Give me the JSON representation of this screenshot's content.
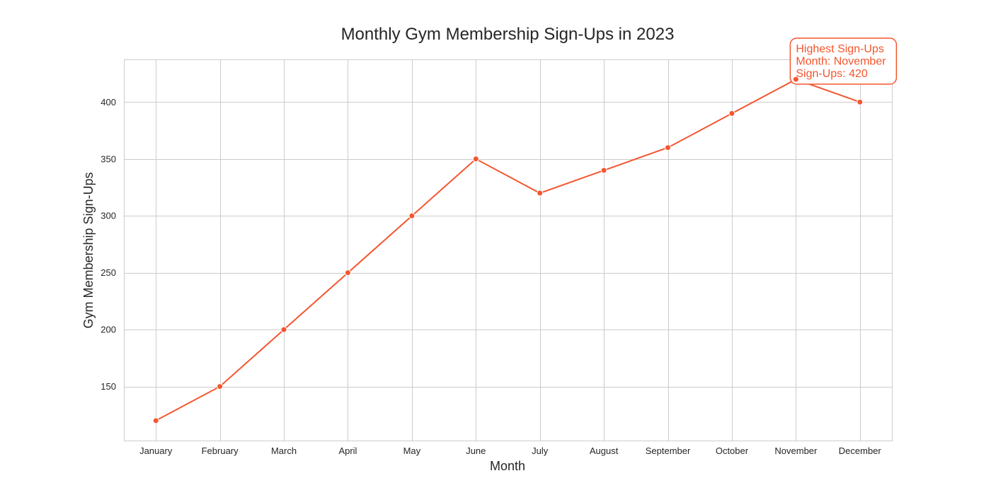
{
  "chart_data": {
    "type": "line",
    "title": "Monthly Gym Membership Sign-Ups in 2023",
    "xlabel": "Month",
    "ylabel": "Gym Membership Sign-Ups",
    "categories": [
      "January",
      "February",
      "March",
      "April",
      "May",
      "June",
      "July",
      "August",
      "September",
      "October",
      "November",
      "December"
    ],
    "series": [
      {
        "name": "Sign-Ups",
        "values": [
          120,
          150,
          200,
          250,
          300,
          350,
          320,
          340,
          360,
          390,
          420,
          400
        ]
      }
    ],
    "ylim": [
      102.5,
      437.5
    ],
    "yticks": [
      150,
      200,
      250,
      300,
      350,
      400
    ],
    "grid": true,
    "color": "#f4562f",
    "annotation": {
      "lines": [
        "Highest Sign-Ups",
        "Month: November",
        "Sign-Ups: 420"
      ],
      "category": "November",
      "value": 420
    }
  }
}
